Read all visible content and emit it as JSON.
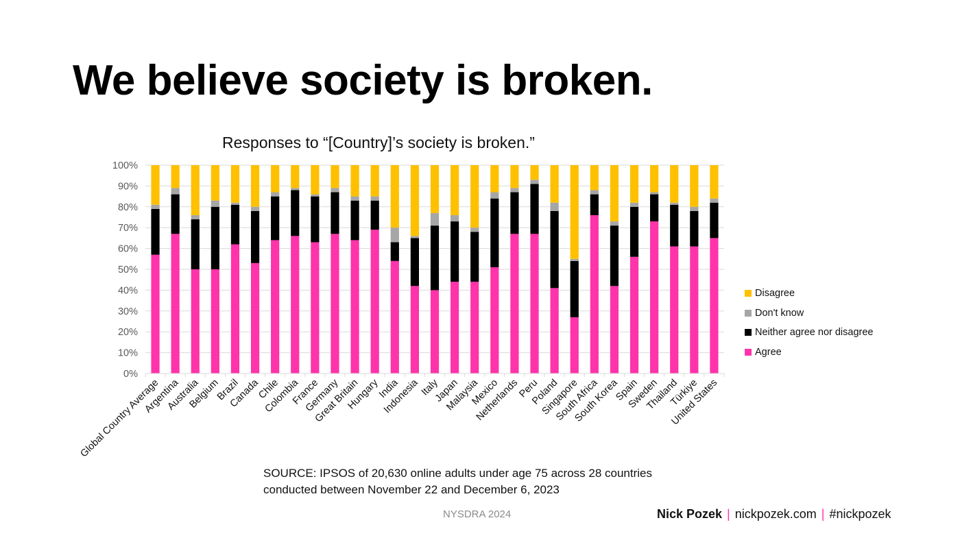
{
  "slide": {
    "title": "We believe society is broken.",
    "source_line1": "SOURCE: IPSOS of 20,630 online adults under age 75 across 28 countries",
    "source_line2": "conducted between November 22 and December 6, 2023",
    "event": "NYSDRA 2024",
    "author": "Nick Pozek",
    "website": "nickpozek.com",
    "hashtag": "#nickpozek",
    "separator": "|",
    "separator_color": "#ff33aa"
  },
  "chart_data": {
    "type": "bar",
    "stacked": true,
    "percent_stacked": true,
    "title": "Responses to “[Country]’s society is broken.”",
    "xlabel": "",
    "ylabel": "",
    "ylim": [
      0,
      100
    ],
    "yticks": [
      "0%",
      "10%",
      "20%",
      "30%",
      "40%",
      "50%",
      "60%",
      "70%",
      "80%",
      "90%",
      "100%"
    ],
    "grid": true,
    "legend_position": "right",
    "categories": [
      "Global Country Average",
      "Argentina",
      "Australia",
      "Belgium",
      "Brazil",
      "Canada",
      "Chile",
      "Colombia",
      "France",
      "Germany",
      "Great Britain",
      "Hungary",
      "India",
      "Indonesia",
      "Italy",
      "Japan",
      "Malaysia",
      "Mexico",
      "Netherlands",
      "Peru",
      "Poland",
      "Singapore",
      "South Africa",
      "South Korea",
      "Spain",
      "Sweden",
      "Thailand",
      "Türkiye",
      "United States"
    ],
    "series": [
      {
        "name": "Agree",
        "color": "#ff33aa",
        "values": [
          57,
          67,
          50,
          50,
          62,
          53,
          64,
          66,
          63,
          67,
          64,
          69,
          54,
          42,
          40,
          44,
          44,
          51,
          67,
          67,
          41,
          27,
          76,
          42,
          56,
          73,
          61,
          61,
          65
        ]
      },
      {
        "name": "Neither agree nor disagree",
        "color": "#000000",
        "values": [
          22,
          19,
          24,
          30,
          19,
          25,
          21,
          22,
          22,
          20,
          19,
          14,
          9,
          23,
          31,
          29,
          24,
          33,
          20,
          24,
          37,
          27,
          10,
          29,
          24,
          13,
          20,
          17,
          17
        ]
      },
      {
        "name": "Don't know",
        "color": "#a6a6a6",
        "values": [
          2,
          3,
          2,
          3,
          1,
          2,
          2,
          1,
          1,
          2,
          2,
          2,
          7,
          1,
          6,
          3,
          2,
          3,
          2,
          2,
          4,
          1,
          2,
          2,
          2,
          1,
          1,
          2,
          2
        ]
      },
      {
        "name": "Disagree",
        "color": "#ffc000",
        "values": [
          19,
          11,
          24,
          17,
          18,
          20,
          13,
          11,
          14,
          11,
          15,
          15,
          30,
          34,
          23,
          24,
          30,
          13,
          11,
          7,
          18,
          45,
          12,
          27,
          18,
          13,
          18,
          20,
          16
        ]
      }
    ],
    "legend_order": [
      "Disagree",
      "Don't know",
      "Neither agree nor disagree",
      "Agree"
    ]
  }
}
